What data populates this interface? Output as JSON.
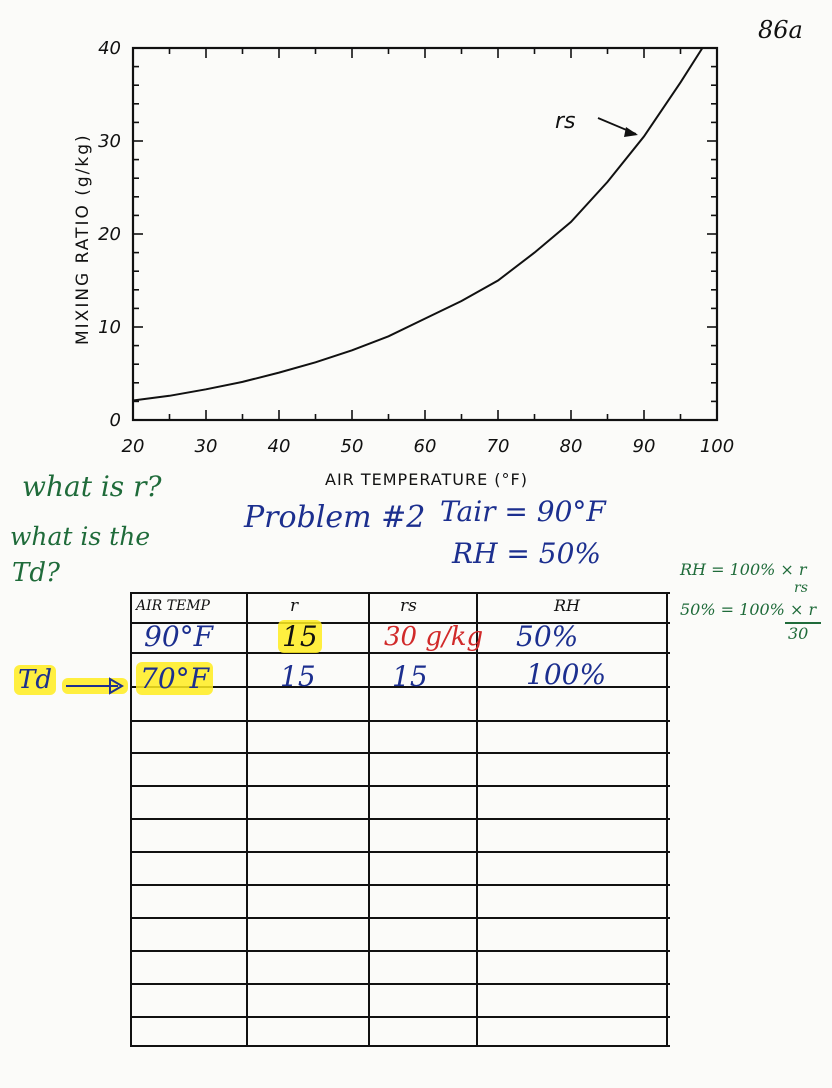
{
  "page_number": "86a",
  "chart_data": {
    "type": "line",
    "ylabel": "MIXING RATIO (g/kg)",
    "xlabel": "AIR TEMPERATURE (°F)",
    "xlim": [
      20,
      100
    ],
    "ylim": [
      0,
      40
    ],
    "x_ticks": [
      "20",
      "30",
      "40",
      "50",
      "60",
      "70",
      "80",
      "90",
      "100"
    ],
    "y_ticks": [
      "0",
      "10",
      "20",
      "30",
      "40"
    ],
    "series": [
      {
        "name": "rs",
        "x": [
          20,
          25,
          30,
          35,
          40,
          45,
          50,
          55,
          60,
          65,
          70,
          75,
          80,
          85,
          90,
          95,
          98
        ],
        "values": [
          2.1,
          2.6,
          3.3,
          4.1,
          5.1,
          6.2,
          7.5,
          9.0,
          10.9,
          12.8,
          15.0,
          18.0,
          21.3,
          25.6,
          30.5,
          36.3,
          40.0
        ]
      }
    ],
    "annotations": [
      "rs"
    ],
    "grid": false
  },
  "notes": {
    "question_r": "what is r?",
    "question_td_line1": "what is the",
    "question_td_line2": "Td?",
    "problem_title": "Problem #2",
    "tair": "Tair = 90°F",
    "rh": "RH = 50%",
    "formula_line1": "RH = 100% × r",
    "formula_rs": "rs",
    "formula_line2": "50% = 100% × r",
    "formula_30": "30"
  },
  "table": {
    "headers": [
      "AIR TEMP",
      "r",
      "rs",
      "RH"
    ],
    "rows": [
      [
        "90°F",
        "15",
        "30 g/kg",
        "50%"
      ],
      [
        "70°F",
        "15",
        "15",
        "100%"
      ]
    ],
    "row_label": "Td"
  }
}
